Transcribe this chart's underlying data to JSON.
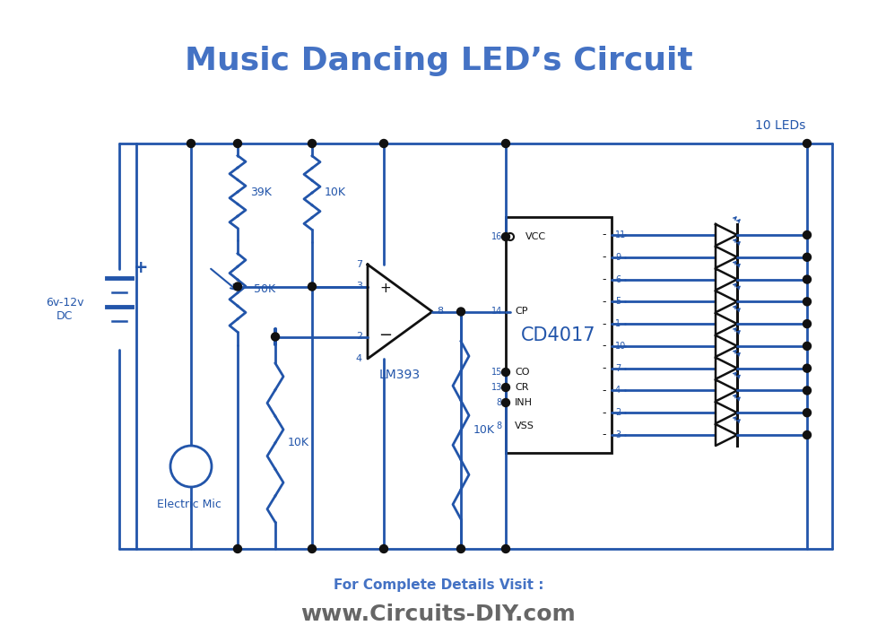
{
  "title": "Music Dancing LED’s Circuit",
  "subtitle_visit": "For Complete Details Visit :",
  "subtitle_url": "www.Circuits-DIY.com",
  "title_color": "#4472C4",
  "circuit_color": "#2255AA",
  "black": "#111111",
  "bg_color": "#ffffff",
  "leds_label": "10 LEDs",
  "battery_label": "6v-12v\nDC",
  "plus_label": "+",
  "mic_label": "Electric Mic",
  "ic_label": "CD4017",
  "opamp_label": "LM393",
  "r39_label": "39K",
  "r10t_label": "10K",
  "r50_label": "50K",
  "r10b1_label": "10K",
  "r10b2_label": "10K",
  "pin_labels_cd_left": [
    "16",
    "14",
    "15",
    "13",
    "8"
  ],
  "pin_names_cd_left": [
    "VCC",
    "CP",
    "CO",
    "CR",
    "INH"
  ],
  "pin_labels_cd_right": [
    "11",
    "9",
    "6",
    "5",
    "1",
    "10",
    "7",
    "4",
    "2",
    "3"
  ],
  "pin_vss": "VSS",
  "footer_color": "#4472C4",
  "footer2_color": "#666666"
}
